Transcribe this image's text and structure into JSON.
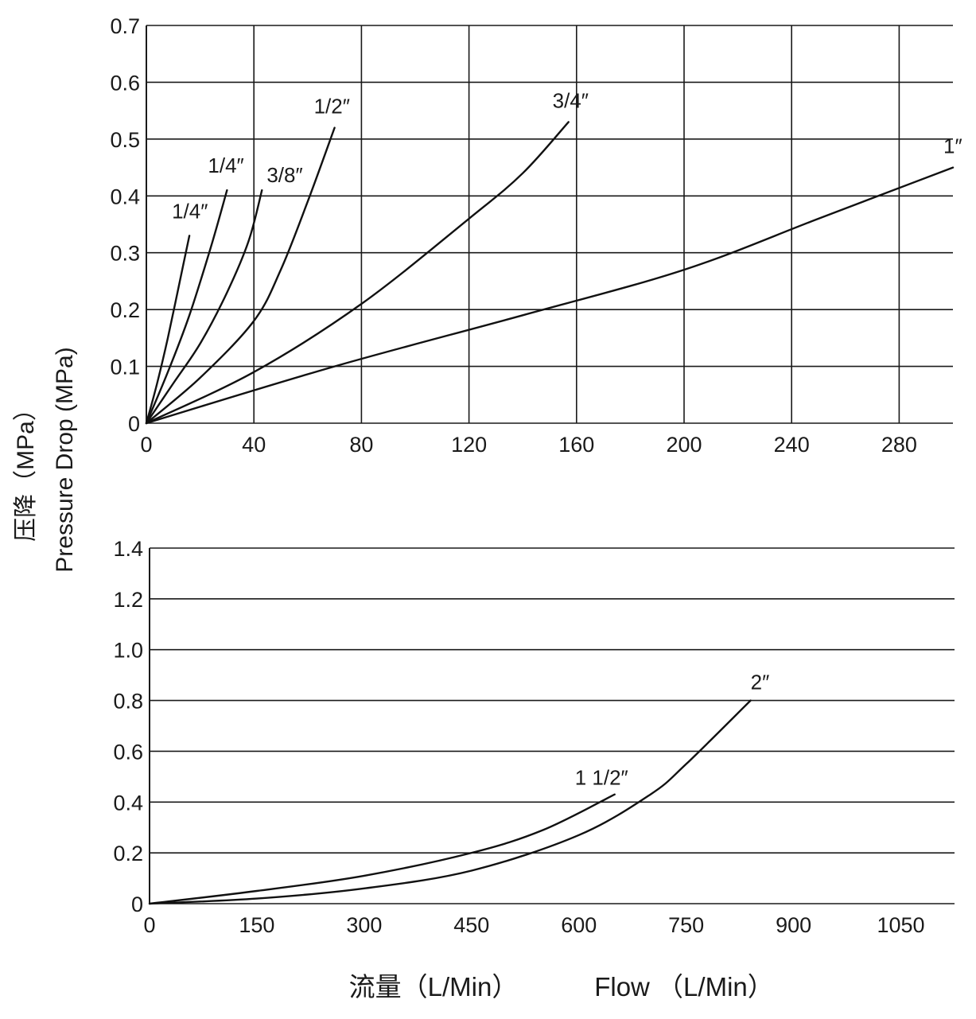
{
  "ylabel_cn": "压降（MPa）",
  "ylabel_en": "Pressure Drop (MPa)",
  "xlabel_cn": "流量（L/Min）",
  "xlabel_en": "Flow （L/Min）",
  "chart_data": [
    {
      "type": "line",
      "grid": true,
      "xlim": [
        0,
        300
      ],
      "ylim": [
        0,
        0.7
      ],
      "xticks": [
        0,
        40,
        80,
        120,
        160,
        200,
        240,
        280
      ],
      "yticks": [
        0,
        0.1,
        0.2,
        0.3,
        0.4,
        0.5,
        0.6,
        0.7
      ],
      "xtick_labels": [
        "0",
        "40",
        "80",
        "120",
        "160",
        "200",
        "240",
        "280"
      ],
      "ytick_labels": [
        "0",
        "0.1",
        "0.2",
        "0.3",
        "0.4",
        "0.5",
        "0.6",
        "0.7"
      ],
      "series": [
        {
          "name": "1/4″",
          "x": [
            0,
            4,
            8,
            12,
            16
          ],
          "y": [
            0,
            0.07,
            0.15,
            0.24,
            0.33
          ]
        },
        {
          "name": "1/4″",
          "x": [
            0,
            8,
            16,
            24,
            30
          ],
          "y": [
            0,
            0.09,
            0.19,
            0.31,
            0.41
          ]
        },
        {
          "name": "3/8″",
          "x": [
            0,
            10,
            20,
            30,
            38,
            43
          ],
          "y": [
            0,
            0.07,
            0.14,
            0.23,
            0.32,
            0.41
          ]
        },
        {
          "name": "1/2″",
          "x": [
            0,
            20,
            40,
            50,
            60,
            70
          ],
          "y": [
            0,
            0.08,
            0.18,
            0.27,
            0.39,
            0.52
          ]
        },
        {
          "name": "3/4″",
          "x": [
            0,
            40,
            80,
            120,
            140,
            157
          ],
          "y": [
            0,
            0.09,
            0.21,
            0.36,
            0.44,
            0.53
          ]
        },
        {
          "name": "1″",
          "x": [
            0,
            70,
            140,
            200,
            250,
            300
          ],
          "y": [
            0,
            0.1,
            0.19,
            0.27,
            0.36,
            0.45
          ]
        }
      ]
    },
    {
      "type": "line",
      "grid": true,
      "xlim": [
        0,
        1125
      ],
      "ylim": [
        0,
        1.4
      ],
      "xticks": [
        0,
        150,
        300,
        450,
        600,
        750,
        900,
        1050
      ],
      "yticks": [
        0,
        0.2,
        0.4,
        0.6,
        0.8,
        1.0,
        1.2,
        1.4
      ],
      "xtick_labels": [
        "0",
        "150",
        "300",
        "450",
        "600",
        "750",
        "900",
        "1050"
      ],
      "ytick_labels": [
        "0",
        "0.2",
        "0.4",
        "0.6",
        "0.8",
        "1.0",
        "1.2",
        "1.4"
      ],
      "series": [
        {
          "name": "1 1/2″",
          "x": [
            0,
            150,
            300,
            450,
            550,
            650
          ],
          "y": [
            0,
            0.05,
            0.11,
            0.2,
            0.29,
            0.43
          ]
        },
        {
          "name": "2″",
          "x": [
            0,
            150,
            300,
            450,
            600,
            700,
            750,
            840
          ],
          "y": [
            0,
            0.02,
            0.06,
            0.13,
            0.27,
            0.43,
            0.55,
            0.8
          ]
        }
      ]
    }
  ]
}
